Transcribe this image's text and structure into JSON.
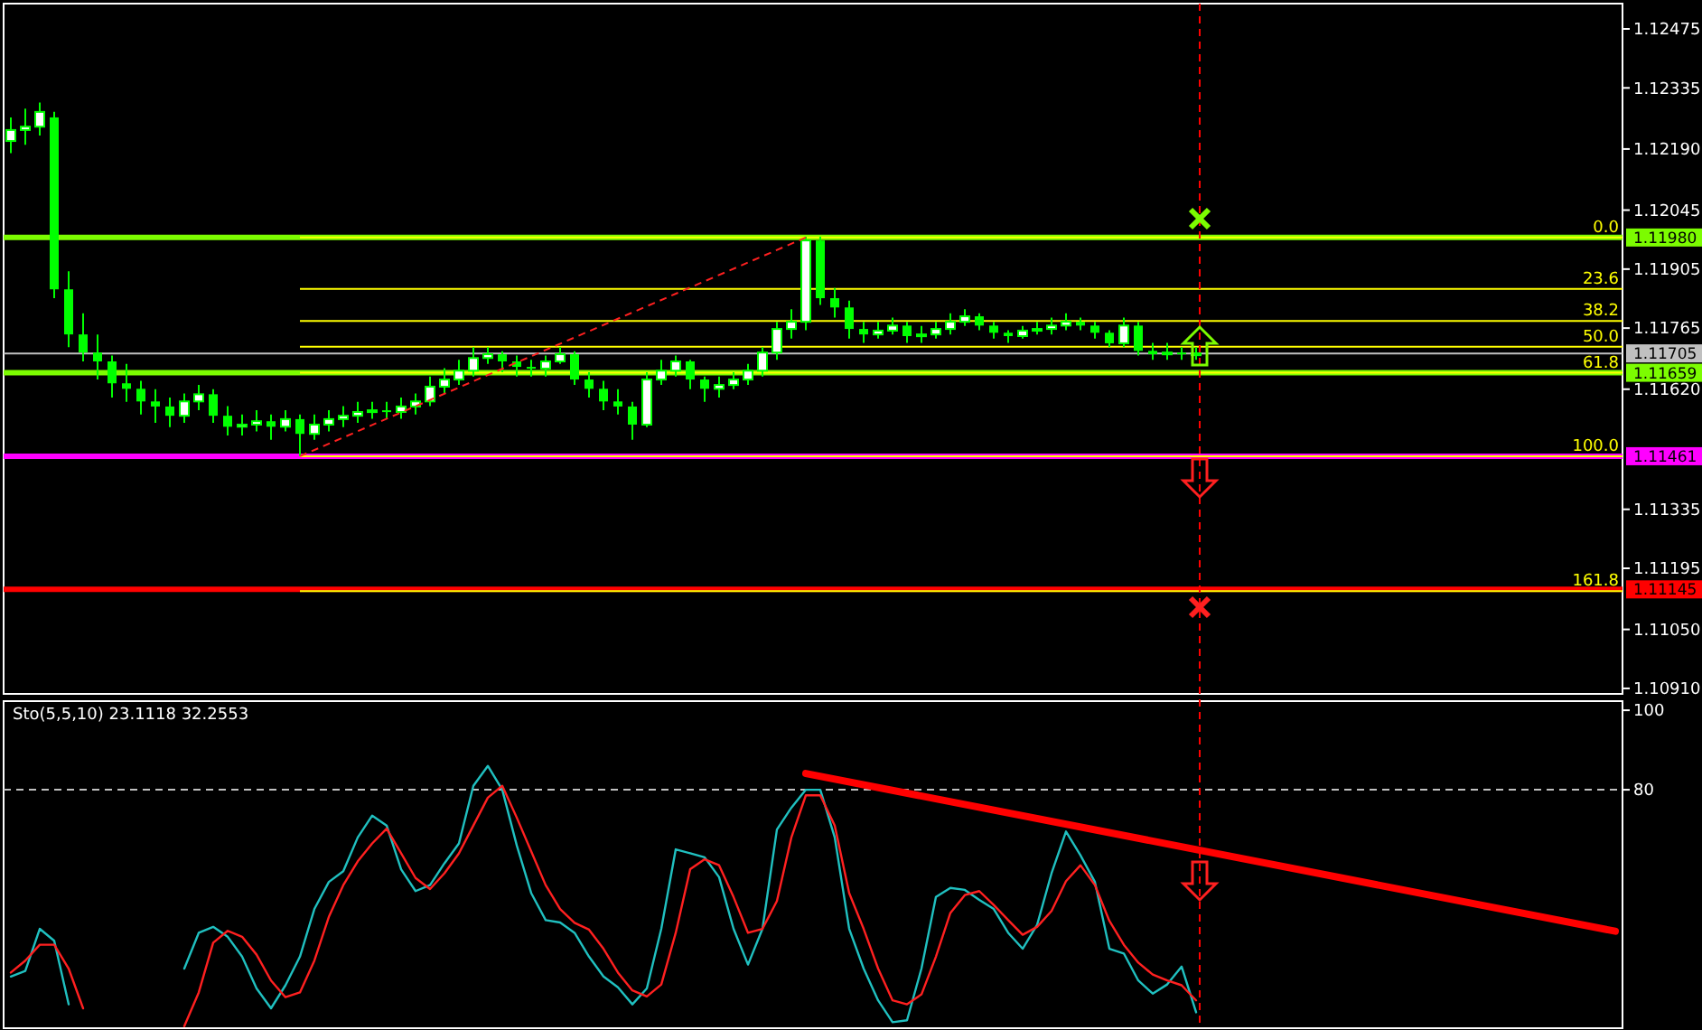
{
  "chart_data": [
    {
      "type": "candlestick",
      "color": "#00ff00",
      "tick_labels": "y",
      "categories": [
        null,
        null,
        null,
        null,
        null,
        null,
        null,
        null,
        null,
        null,
        null,
        null,
        null,
        null,
        null,
        null,
        null,
        null,
        null,
        null,
        null,
        null,
        null,
        null,
        null,
        null,
        null,
        null,
        null,
        null,
        null,
        null,
        null,
        null,
        null,
        null,
        null,
        null,
        null,
        null,
        null,
        null,
        null,
        null,
        null,
        null,
        null,
        null,
        null,
        null,
        null,
        null,
        null,
        null,
        null,
        null,
        null,
        null,
        null,
        null,
        null,
        null,
        null,
        null,
        null,
        null,
        null,
        null,
        null,
        null,
        null,
        null,
        null,
        null,
        null,
        null,
        null,
        null,
        null,
        null,
        null,
        null,
        null,
        null,
        null,
        null,
        null,
        null,
        null,
        null,
        null,
        null,
        null,
        null,
        null,
        null,
        null,
        null,
        null,
        null,
        null,
        null,
        null,
        null,
        null,
        null,
        null,
        null,
        null,
        null,
        null,
        null
      ],
      "annotations": [
        {
          "text": "0.0",
          "y": 1.1198
        },
        {
          "text": "23.6",
          "y": 1.11858
        },
        {
          "text": "38.2",
          "y": 1.11782
        },
        {
          "text": "50.0",
          "y": 1.11721
        },
        {
          "text": "61.8",
          "y": 1.11659
        },
        {
          "text": "100.0",
          "y": 1.11461
        },
        {
          "text": "161.8",
          "y": 1.11141
        }
      ],
      "ohlc": [
        [
          1.12209,
          1.12265,
          1.1218,
          1.12235
        ],
        [
          1.12235,
          1.12286,
          1.122,
          1.12243
        ],
        [
          1.12243,
          1.123,
          1.12222,
          1.12278
        ],
        [
          1.12265,
          1.12278,
          1.11836,
          1.11857
        ],
        [
          1.11857,
          1.119,
          1.1172,
          1.1175
        ],
        [
          1.1175,
          1.118,
          1.11686,
          1.11707
        ],
        [
          1.11707,
          1.1175,
          1.11643,
          1.11686
        ],
        [
          1.11686,
          1.117,
          1.116,
          1.11634
        ],
        [
          1.11634,
          1.1168,
          1.1159,
          1.11621
        ],
        [
          1.11621,
          1.1164,
          1.1156,
          1.11591
        ],
        [
          1.11591,
          1.1162,
          1.1154,
          1.11579
        ],
        [
          1.11579,
          1.116,
          1.1153,
          1.11557
        ],
        [
          1.11557,
          1.1161,
          1.1154,
          1.11591
        ],
        [
          1.11591,
          1.1163,
          1.1157,
          1.11608
        ],
        [
          1.11608,
          1.1162,
          1.1154,
          1.11557
        ],
        [
          1.11557,
          1.1158,
          1.1151,
          1.11531
        ],
        [
          1.11531,
          1.1156,
          1.1151,
          1.11536
        ],
        [
          1.11536,
          1.1157,
          1.1152,
          1.11544
        ],
        [
          1.11544,
          1.1156,
          1.115,
          1.11531
        ],
        [
          1.11531,
          1.1157,
          1.1152,
          1.11549
        ],
        [
          1.11549,
          1.1156,
          1.11461,
          1.11514
        ],
        [
          1.11514,
          1.1156,
          1.115,
          1.11536
        ],
        [
          1.11536,
          1.1157,
          1.1152,
          1.11549
        ],
        [
          1.11549,
          1.1158,
          1.1153,
          1.11557
        ],
        [
          1.11557,
          1.1159,
          1.1154,
          1.11566
        ],
        [
          1.11566,
          1.1159,
          1.1155,
          1.1157
        ],
        [
          1.1157,
          1.1159,
          1.1155,
          1.11566
        ],
        [
          1.11566,
          1.116,
          1.1155,
          1.11579
        ],
        [
          1.11579,
          1.1161,
          1.1156,
          1.11591
        ],
        [
          1.11591,
          1.1165,
          1.1158,
          1.11626
        ],
        [
          1.11626,
          1.1167,
          1.1161,
          1.11643
        ],
        [
          1.11643,
          1.1169,
          1.1163,
          1.11664
        ],
        [
          1.11664,
          1.1172,
          1.1165,
          1.11694
        ],
        [
          1.11694,
          1.1172,
          1.1168,
          1.11703
        ],
        [
          1.11703,
          1.1171,
          1.1166,
          1.11686
        ],
        [
          1.11686,
          1.117,
          1.1165,
          1.11673
        ],
        [
          1.11673,
          1.1169,
          1.1165,
          1.11669
        ],
        [
          1.11669,
          1.117,
          1.1165,
          1.11686
        ],
        [
          1.11686,
          1.1172,
          1.1168,
          1.11703
        ],
        [
          1.11703,
          1.1171,
          1.1163,
          1.11643
        ],
        [
          1.11643,
          1.1166,
          1.116,
          1.11621
        ],
        [
          1.11621,
          1.1164,
          1.1157,
          1.11591
        ],
        [
          1.11591,
          1.1162,
          1.1156,
          1.11579
        ],
        [
          1.11579,
          1.1159,
          1.115,
          1.11536
        ],
        [
          1.11536,
          1.1166,
          1.1153,
          1.11643
        ],
        [
          1.11643,
          1.1169,
          1.1163,
          1.11664
        ],
        [
          1.11664,
          1.117,
          1.1165,
          1.11686
        ],
        [
          1.11686,
          1.1169,
          1.1162,
          1.11643
        ],
        [
          1.11643,
          1.1165,
          1.1159,
          1.11621
        ],
        [
          1.11621,
          1.1165,
          1.116,
          1.1163
        ],
        [
          1.1163,
          1.1166,
          1.1162,
          1.11643
        ],
        [
          1.11643,
          1.1168,
          1.1163,
          1.11664
        ],
        [
          1.11664,
          1.1172,
          1.1165,
          1.11707
        ],
        [
          1.11707,
          1.1178,
          1.1169,
          1.11763
        ],
        [
          1.11763,
          1.1181,
          1.1174,
          1.1178
        ],
        [
          1.1178,
          1.11982,
          1.1176,
          1.11973
        ],
        [
          1.11973,
          1.11982,
          1.1182,
          1.11836
        ],
        [
          1.11836,
          1.1186,
          1.1179,
          1.11814
        ],
        [
          1.11814,
          1.1183,
          1.1174,
          1.11763
        ],
        [
          1.11763,
          1.1178,
          1.1173,
          1.1175
        ],
        [
          1.1175,
          1.1178,
          1.1174,
          1.11759
        ],
        [
          1.11759,
          1.1179,
          1.1175,
          1.11771
        ],
        [
          1.11771,
          1.1178,
          1.1173,
          1.11746
        ],
        [
          1.11746,
          1.1177,
          1.1173,
          1.1175
        ],
        [
          1.1175,
          1.1178,
          1.1174,
          1.11763
        ],
        [
          1.11763,
          1.118,
          1.1175,
          1.1178
        ],
        [
          1.1178,
          1.1181,
          1.1177,
          1.11793
        ],
        [
          1.11793,
          1.118,
          1.1176,
          1.11771
        ],
        [
          1.11771,
          1.1178,
          1.1174,
          1.11754
        ],
        [
          1.11754,
          1.1176,
          1.1173,
          1.11746
        ],
        [
          1.11746,
          1.1177,
          1.1174,
          1.11759
        ],
        [
          1.11759,
          1.1178,
          1.1175,
          1.11763
        ],
        [
          1.11763,
          1.1179,
          1.1175,
          1.11771
        ],
        [
          1.11771,
          1.118,
          1.1176,
          1.1178
        ],
        [
          1.1178,
          1.1179,
          1.1176,
          1.11771
        ],
        [
          1.11771,
          1.1178,
          1.1174,
          1.11754
        ],
        [
          1.11754,
          1.1176,
          1.1172,
          1.11729
        ],
        [
          1.11729,
          1.1179,
          1.1172,
          1.11771
        ],
        [
          1.11771,
          1.1178,
          1.117,
          1.11711
        ],
        [
          1.11711,
          1.1173,
          1.1169,
          1.11703
        ],
        [
          1.11703,
          1.1173,
          1.1169,
          1.11707
        ],
        [
          1.11707,
          1.1172,
          1.1169,
          1.11703
        ],
        [
          1.11703,
          1.1172,
          1.1169,
          1.11705
        ],
        null,
        null,
        null,
        null,
        null,
        null,
        null,
        null,
        null,
        null,
        null,
        null,
        null,
        null,
        null,
        null,
        null,
        null,
        null,
        null,
        null,
        null,
        null,
        null,
        null,
        null,
        null,
        null,
        null
      ],
      "ylim": [
        1.10897,
        1.12535
      ],
      "yticks": [
        {
          "value": 1.12475,
          "label": "1.12475"
        },
        {
          "value": 1.12335,
          "label": "1.12335"
        },
        {
          "value": 1.1219,
          "label": "1.12190"
        },
        {
          "value": 1.12045,
          "label": "1.12045"
        },
        {
          "value": 1.11905,
          "label": "1.11905"
        },
        {
          "value": 1.11765,
          "label": "1.11765"
        },
        {
          "value": 1.1162,
          "label": "1.11620"
        },
        {
          "value": 1.11335,
          "label": "1.11335"
        },
        {
          "value": 1.11195,
          "label": "1.11195"
        },
        {
          "value": 1.1105,
          "label": "1.11050"
        },
        {
          "value": 1.1091,
          "label": "1.10910"
        }
      ],
      "ref_lines": [
        {
          "axis": "y",
          "value": 1.11705,
          "label": "1.11705",
          "color": "#c0c0c0"
        },
        {
          "axis": "y",
          "value": 1.1198,
          "label": "1.11980",
          "color": "#7cfc00"
        },
        {
          "axis": "y",
          "value": 1.11659,
          "label": "1.11659",
          "color": "#7cfc00"
        },
        {
          "axis": "y",
          "value": 1.11461,
          "label": "1.11461",
          "color": "#ff00ff"
        },
        {
          "axis": "y",
          "value": 1.11145,
          "label": "1.11145",
          "color": "#ff0000"
        },
        {
          "axis": "y",
          "value": 1.1198,
          "color": "#ffff00"
        },
        {
          "axis": "y",
          "value": 1.11858,
          "color": "#ffff00"
        },
        {
          "axis": "y",
          "value": 1.11782,
          "color": "#ffff00"
        },
        {
          "axis": "y",
          "value": 1.11721,
          "color": "#ffff00"
        },
        {
          "axis": "y",
          "value": 1.11659,
          "color": "#ffff00"
        },
        {
          "axis": "y",
          "value": 1.11461,
          "color": "#ffff00"
        },
        {
          "axis": "y",
          "value": 1.11141,
          "color": "#ffff00"
        }
      ]
    },
    {
      "type": "line",
      "title": "Sto(5,5,10) 23.1118 32.2553",
      "tick_labels": "y",
      "categories": [
        null,
        null,
        null,
        null,
        null,
        null,
        null,
        null,
        null,
        null,
        null,
        null,
        null,
        null,
        null,
        null,
        null,
        null,
        null,
        null,
        null,
        null,
        null,
        null,
        null,
        null,
        null,
        null,
        null,
        null,
        null,
        null,
        null,
        null,
        null,
        null,
        null,
        null,
        null,
        null,
        null,
        null,
        null,
        null,
        null,
        null,
        null,
        null,
        null,
        null,
        null,
        null,
        null,
        null,
        null,
        null,
        null,
        null,
        null,
        null,
        null,
        null,
        null,
        null,
        null,
        null,
        null,
        null,
        null,
        null,
        null,
        null,
        null,
        null,
        null,
        null,
        null,
        null,
        null,
        null,
        null,
        null,
        null,
        null,
        null,
        null,
        null,
        null,
        null,
        null,
        null,
        null,
        null,
        null,
        null,
        null,
        null,
        null,
        null,
        null,
        null,
        null,
        null,
        null,
        null,
        null,
        null,
        null,
        null,
        null,
        null,
        null
      ],
      "series": [
        {
          "color": "#20c0c0",
          "values": [
            33,
            34.4,
            45,
            42,
            26,
            null,
            null,
            null,
            null,
            null,
            null,
            null,
            35,
            44,
            45.5,
            43,
            38,
            30,
            25,
            30.8,
            38,
            50,
            56.8,
            59.5,
            68,
            73.5,
            71,
            60,
            54.5,
            56,
            61.5,
            66.5,
            81,
            86,
            80,
            66,
            54,
            47.2,
            46.6,
            44,
            38,
            33,
            30.3,
            26,
            30,
            45,
            65,
            64,
            63,
            58,
            45,
            36,
            45,
            70,
            75.5,
            80,
            80,
            68,
            45,
            35,
            27,
            21.5,
            22,
            35,
            53,
            55.3,
            54.8,
            52.3,
            50,
            44,
            40,
            46,
            59,
            69.5,
            63.5,
            56.8,
            40,
            38.8,
            32,
            28.7,
            31,
            35.5,
            24,
            null,
            null,
            null,
            null,
            null,
            null,
            null,
            null,
            null,
            null,
            null,
            null,
            null,
            null,
            null,
            null,
            null,
            null,
            null,
            null,
            null,
            null,
            null,
            null,
            null,
            null,
            null,
            null,
            null
          ]
        },
        {
          "color": "#ff2020",
          "values": [
            34,
            37,
            41,
            41,
            35,
            25,
            null,
            null,
            null,
            null,
            null,
            null,
            20.5,
            29,
            41.5,
            44.5,
            43,
            38.5,
            32,
            27.8,
            29,
            37,
            48,
            56,
            62,
            66.5,
            70.2,
            64,
            57.8,
            55,
            59,
            64,
            71,
            78,
            81,
            73,
            64.5,
            56,
            50,
            46.5,
            44.8,
            40,
            34,
            29.5,
            28,
            31,
            44,
            60,
            62.5,
            61,
            53,
            44,
            45,
            52,
            68,
            78.6,
            78.6,
            71,
            54,
            45,
            35,
            27,
            26,
            28.5,
            38,
            49,
            53.5,
            54.5,
            51,
            47.2,
            43.5,
            45.5,
            49.5,
            57,
            61,
            56,
            47,
            41,
            36.5,
            33.5,
            32,
            30.8,
            27,
            null,
            null,
            null,
            null,
            null,
            null,
            null,
            null,
            null,
            null,
            null,
            null,
            null,
            null,
            null,
            null,
            null,
            null,
            null,
            null,
            null,
            null,
            null,
            null,
            null,
            null,
            null,
            null,
            null
          ]
        },
        {
          "color": "#ff0000",
          "values": [
            null,
            null,
            null,
            null,
            null,
            null,
            null,
            null,
            null,
            null,
            null,
            null,
            null,
            null,
            null,
            null,
            null,
            null,
            null,
            null,
            null,
            null,
            null,
            null,
            null,
            null,
            null,
            null,
            null,
            null,
            null,
            null,
            null,
            null,
            null,
            null,
            null,
            null,
            null,
            null,
            null,
            null,
            null,
            null,
            null,
            null,
            null,
            null,
            null,
            null,
            null,
            null,
            null,
            null,
            null,
            84.1,
            null,
            null,
            null,
            null,
            null,
            null,
            null,
            null,
            null,
            null,
            null,
            null,
            null,
            null,
            null,
            null,
            null,
            null,
            null,
            null,
            null,
            null,
            null,
            null,
            null,
            null,
            null,
            null,
            null,
            null,
            null,
            null,
            null,
            null,
            null,
            null,
            null,
            null,
            null,
            null,
            null,
            null,
            null,
            null,
            null,
            null,
            null,
            null,
            null,
            null,
            null,
            null,
            null,
            null,
            null,
            44.4
          ]
        }
      ],
      "ylim": [
        20,
        102.3
      ],
      "yticks": [
        {
          "value": 100,
          "label": "100"
        },
        {
          "value": 80,
          "label": "80"
        }
      ],
      "ref_lines": [
        {
          "axis": "y",
          "value": 80,
          "color": "#c0c0c0",
          "line_style": "dashed"
        }
      ]
    }
  ]
}
